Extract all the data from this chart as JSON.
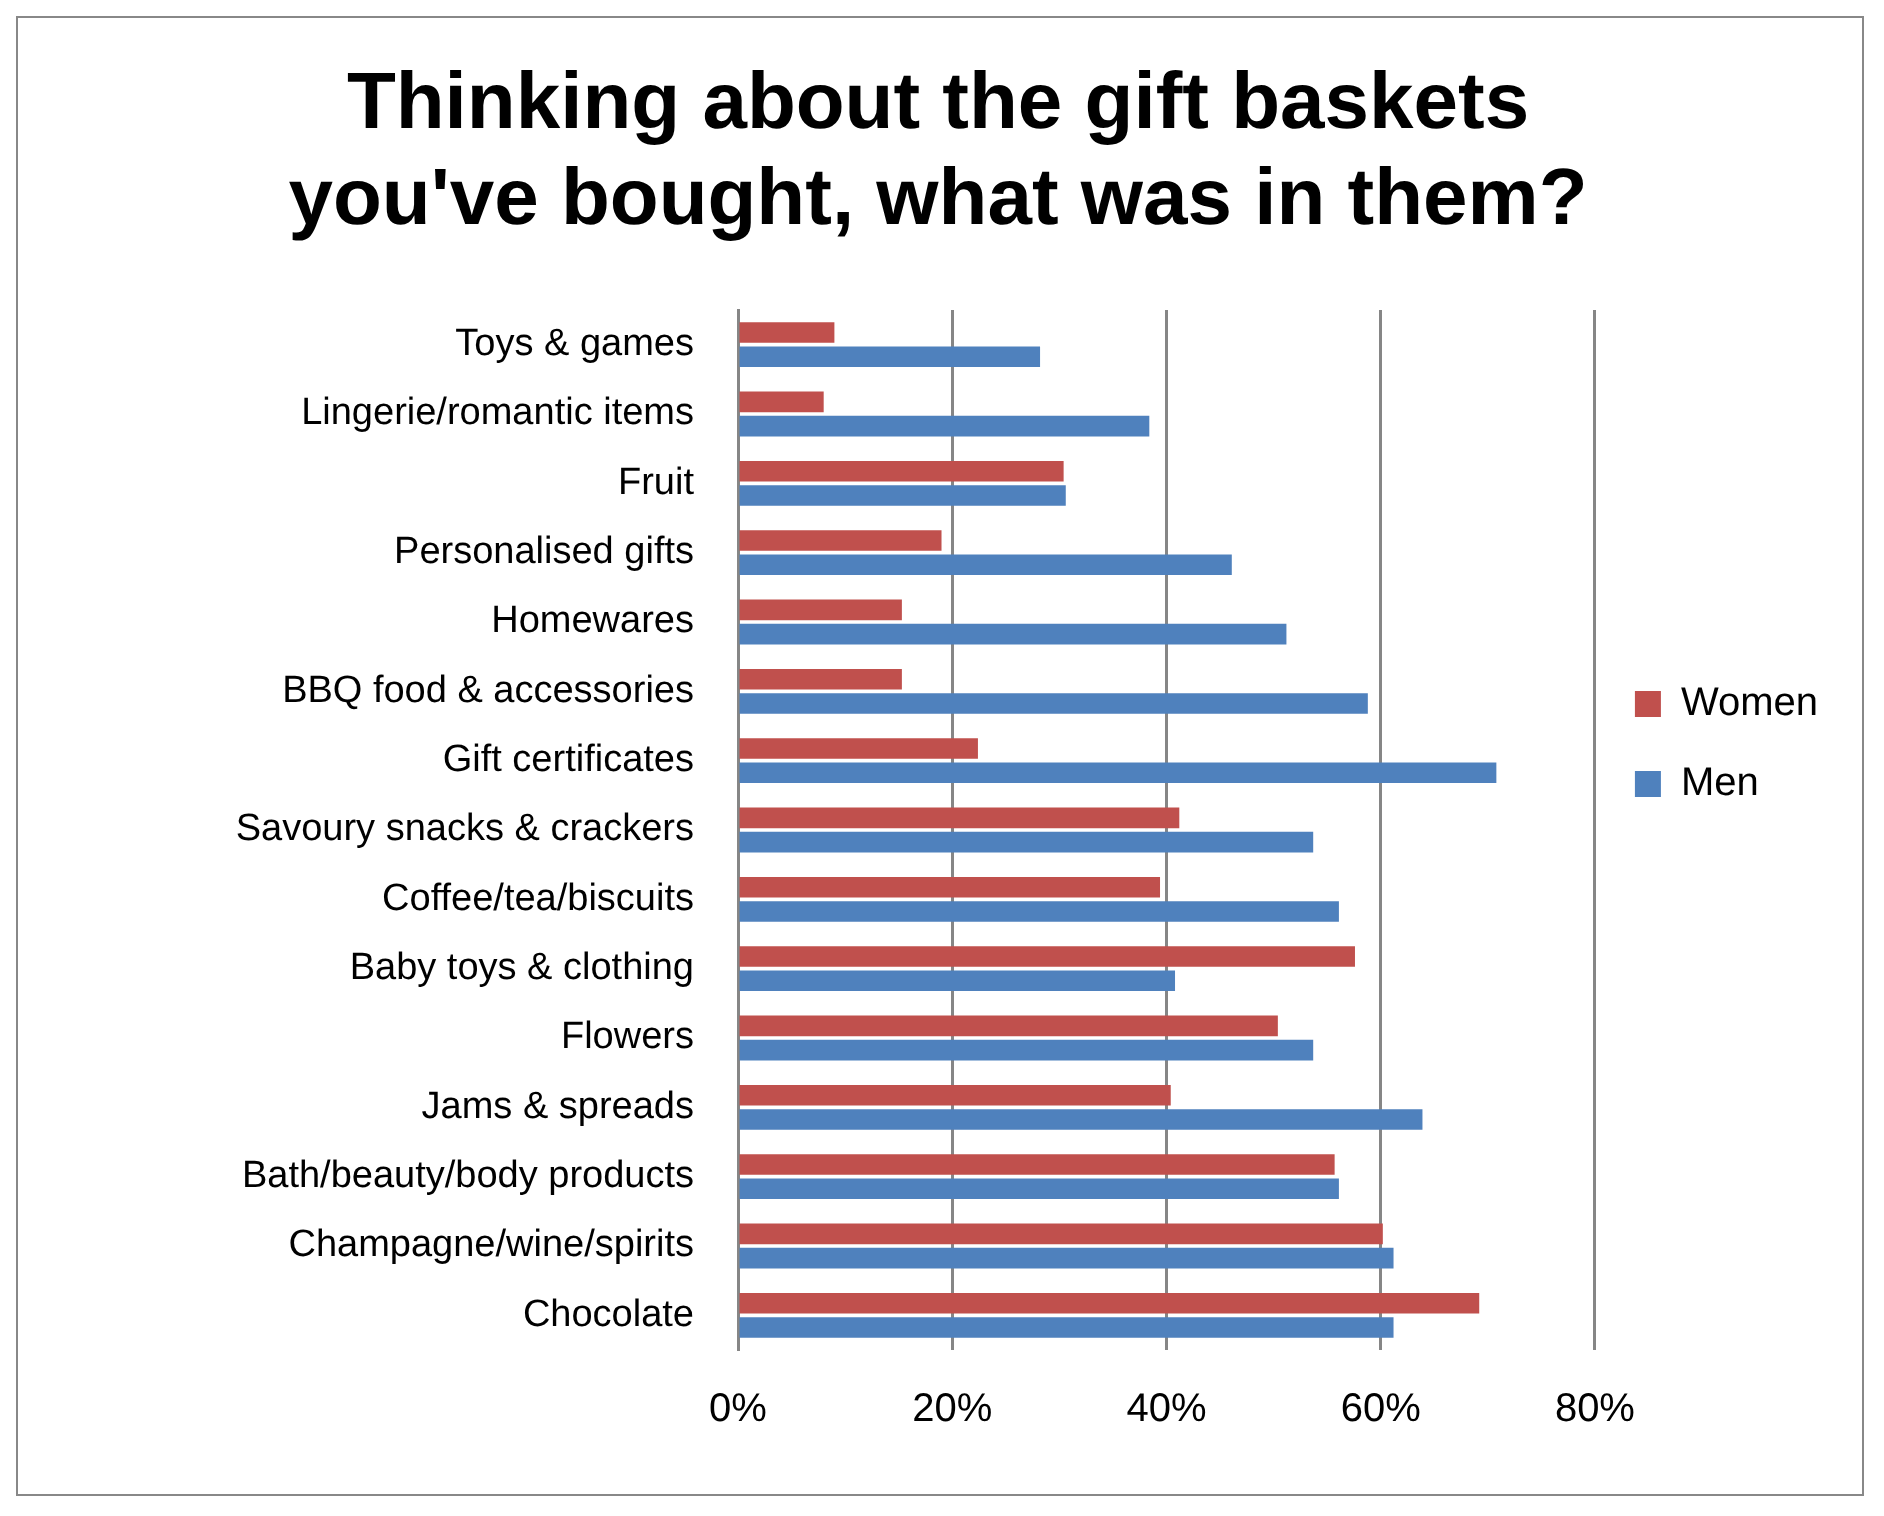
{
  "chart_data": {
    "type": "bar",
    "orientation": "horizontal",
    "title": [
      "Thinking about the gift baskets",
      "you've bought, what was in them?"
    ],
    "categories": [
      "Toys & games",
      "Lingerie/romantic items",
      "Fruit",
      "Personalised gifts",
      "Homewares",
      "BBQ food & accessories",
      "Gift certificates",
      "Savoury snacks & crackers",
      "Coffee/tea/biscuits",
      "Baby toys & clothing",
      "Flowers",
      "Jams & spreads",
      "Bath/beauty/body products",
      "Champagne/wine/spirits",
      "Chocolate"
    ],
    "series": [
      {
        "name": "Women",
        "color": "#c0504d",
        "values": [
          9,
          8,
          30.4,
          19,
          15.3,
          15.3,
          22.4,
          41.2,
          39.4,
          57.6,
          50.4,
          40.4,
          55.7,
          60.2,
          69.2
        ]
      },
      {
        "name": "Men",
        "color": "#4f81bd",
        "values": [
          28.2,
          38.4,
          30.6,
          46.1,
          51.2,
          58.8,
          70.8,
          53.7,
          56.1,
          40.8,
          53.7,
          63.9,
          56.1,
          61.2,
          61.2
        ]
      }
    ],
    "xlim": [
      0,
      80
    ],
    "xticks": [
      {
        "value": 0,
        "label": "0%"
      },
      {
        "value": 20,
        "label": "20%"
      },
      {
        "value": 40,
        "label": "40%"
      },
      {
        "value": 60,
        "label": "60%"
      },
      {
        "value": 80,
        "label": "80%"
      }
    ],
    "grid": "x",
    "legend": "right"
  }
}
